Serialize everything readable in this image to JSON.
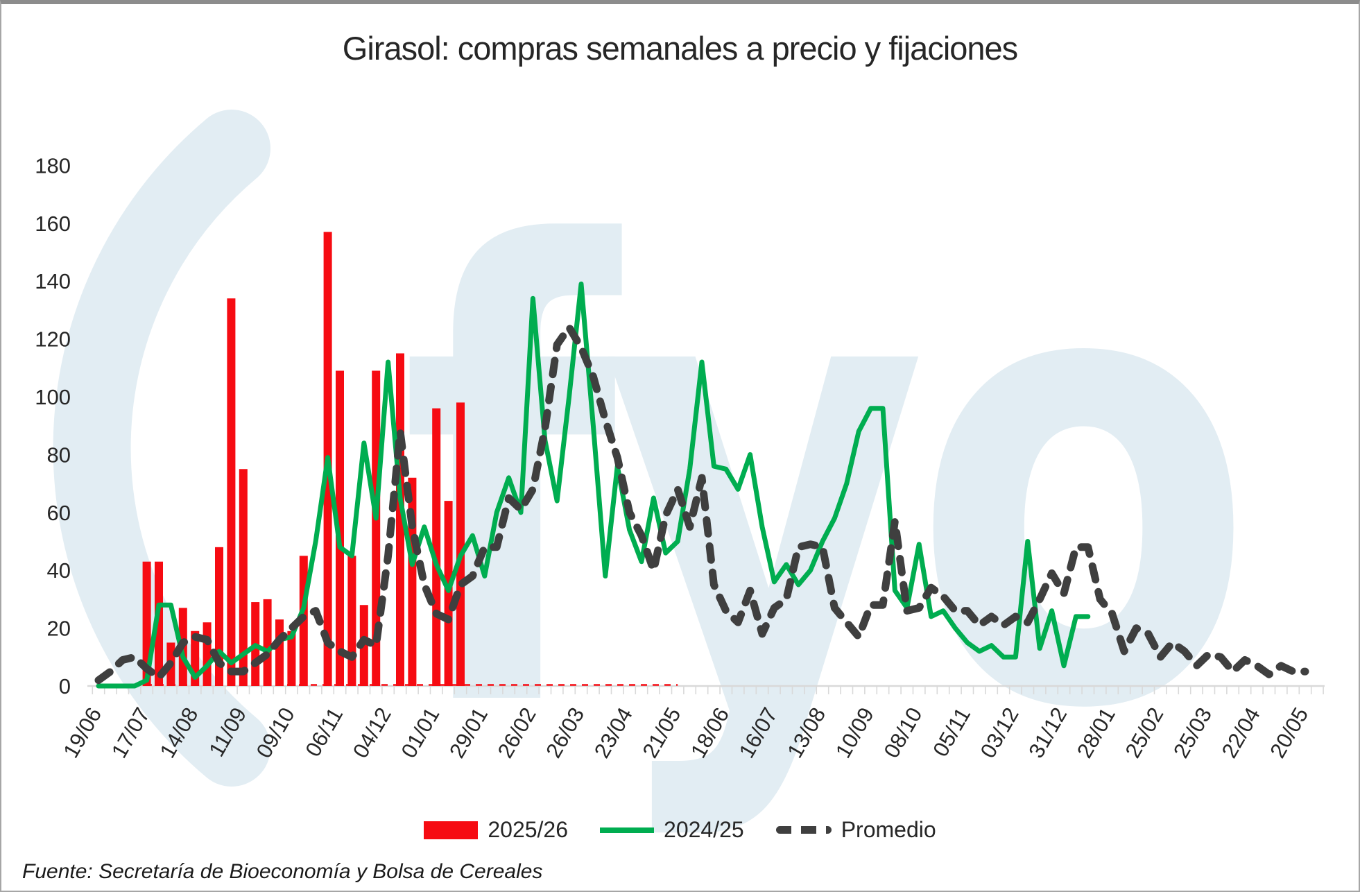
{
  "chart": {
    "title": "Girasol: compras semanales a precio y fijaciones",
    "source_note": "Fuente: Secretaría de Bioeconomía y Bolsa de Cereales",
    "watermark_text": "fyo",
    "colors": {
      "bars": "#f60b12",
      "line_2024_25": "#00ad50",
      "promedio": "#3f3f3f",
      "watermark": "#e2edf3",
      "axis": "#d9d9d9",
      "tick_text": "#262626"
    },
    "legend": [
      {
        "label": "2025/26",
        "type": "bar",
        "color": "#f60b12"
      },
      {
        "label": "2024/25",
        "type": "line",
        "color": "#00ad50"
      },
      {
        "label": "Promedio",
        "type": "dashed",
        "color": "#3f3f3f"
      }
    ]
  },
  "chart_data": {
    "type": "bar+line",
    "title": "Girasol: compras semanales a precio y fijaciones",
    "xlabel": "",
    "ylabel": "",
    "ylim": [
      0,
      180
    ],
    "yticks": [
      0,
      20,
      40,
      60,
      80,
      100,
      120,
      140,
      160,
      180
    ],
    "grid": false,
    "legend_position": "bottom",
    "weeks_total": 102,
    "x_tick_label_every_n_weeks": 4,
    "x_tick_labels": [
      "19/06",
      "17/07",
      "14/08",
      "11/09",
      "09/10",
      "06/11",
      "04/12",
      "01/01",
      "29/01",
      "26/02",
      "26/03",
      "23/04",
      "21/05",
      "18/06",
      "16/07",
      "13/08",
      "10/09",
      "08/10",
      "05/11",
      "03/12",
      "31/12",
      "28/01",
      "25/02",
      "25/03",
      "22/04",
      "20/05"
    ],
    "series": [
      {
        "name": "2025/26",
        "type": "bar",
        "color": "#f60b12",
        "start_week": 4,
        "zero_span_weeks": [
          0,
          48
        ],
        "values": [
          43,
          43,
          15,
          27,
          19,
          22,
          48,
          134,
          75,
          29,
          30,
          23,
          19,
          45,
          0,
          157,
          109,
          45,
          28,
          109,
          0,
          115,
          72,
          0,
          96,
          64,
          98
        ]
      },
      {
        "name": "2024/25",
        "type": "line",
        "color": "#00ad50",
        "start_week": 0,
        "values": [
          0,
          0,
          0,
          0,
          2,
          28,
          28,
          10,
          3,
          7,
          12,
          8,
          11,
          14,
          12,
          16,
          17,
          27,
          50,
          79,
          48,
          45,
          84,
          58,
          112,
          65,
          42,
          55,
          42,
          33,
          45,
          52,
          38,
          60,
          72,
          60,
          134,
          85,
          64,
          100,
          139,
          90,
          38,
          76,
          54,
          43,
          65,
          46,
          50,
          75,
          112,
          76,
          75,
          68,
          80,
          55,
          36,
          42,
          35,
          40,
          50,
          58,
          70,
          88,
          96,
          96,
          33,
          27,
          49,
          24,
          26,
          20,
          15,
          12,
          14,
          10,
          10,
          50,
          13,
          26,
          7,
          24,
          24
        ]
      },
      {
        "name": "Promedio",
        "type": "dashed_line",
        "color": "#3f3f3f",
        "start_week": 0,
        "values": [
          2,
          5,
          9,
          10,
          6,
          3,
          8,
          15,
          17,
          16,
          8,
          5,
          5,
          8,
          11,
          16,
          20,
          24,
          26,
          15,
          12,
          10,
          16,
          14,
          45,
          88,
          55,
          35,
          25,
          23,
          35,
          38,
          48,
          48,
          65,
          61,
          68,
          89,
          118,
          124,
          117,
          107,
          92,
          79,
          60,
          52,
          40,
          59,
          68,
          55,
          72,
          35,
          26,
          22,
          33,
          18,
          27,
          30,
          48,
          49,
          48,
          27,
          22,
          17,
          28,
          28,
          57,
          26,
          27,
          34,
          31,
          26,
          26,
          21,
          24,
          21,
          24,
          22,
          30,
          39,
          32,
          48,
          48,
          30,
          25,
          12,
          20,
          18,
          10,
          15,
          12,
          7,
          11,
          10,
          5,
          9,
          7,
          4,
          7,
          5,
          5
        ]
      }
    ]
  }
}
